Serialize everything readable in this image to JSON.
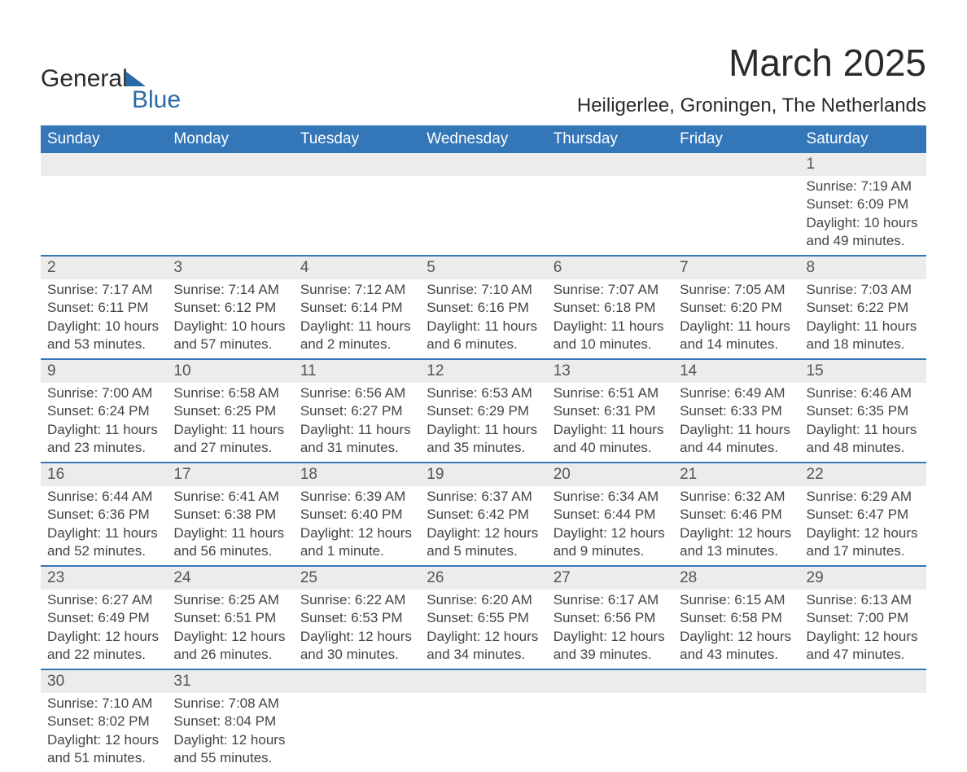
{
  "logo": {
    "part1": "General",
    "part2": "Blue"
  },
  "title": "March 2025",
  "location": "Heiligerlee, Groningen, The Netherlands",
  "day_headers": [
    "Sunday",
    "Monday",
    "Tuesday",
    "Wednesday",
    "Thursday",
    "Friday",
    "Saturday"
  ],
  "colors": {
    "header_bg": "#3477b9",
    "header_text": "#ffffff",
    "daynum_bg": "#ececec",
    "row_border": "#3477b9",
    "body_text": "#444444",
    "title_text": "#2a2a2a",
    "logo_blue": "#2b6aa8"
  },
  "label": {
    "sunrise": "Sunrise:",
    "sunset": "Sunset:",
    "daylight": "Daylight:"
  },
  "weeks": [
    [
      null,
      null,
      null,
      null,
      null,
      null,
      {
        "n": "1",
        "sunrise": "7:19 AM",
        "sunset": "6:09 PM",
        "daylight1": "10 hours",
        "daylight2": "and 49 minutes."
      }
    ],
    [
      {
        "n": "2",
        "sunrise": "7:17 AM",
        "sunset": "6:11 PM",
        "daylight1": "10 hours",
        "daylight2": "and 53 minutes."
      },
      {
        "n": "3",
        "sunrise": "7:14 AM",
        "sunset": "6:12 PM",
        "daylight1": "10 hours",
        "daylight2": "and 57 minutes."
      },
      {
        "n": "4",
        "sunrise": "7:12 AM",
        "sunset": "6:14 PM",
        "daylight1": "11 hours",
        "daylight2": "and 2 minutes."
      },
      {
        "n": "5",
        "sunrise": "7:10 AM",
        "sunset": "6:16 PM",
        "daylight1": "11 hours",
        "daylight2": "and 6 minutes."
      },
      {
        "n": "6",
        "sunrise": "7:07 AM",
        "sunset": "6:18 PM",
        "daylight1": "11 hours",
        "daylight2": "and 10 minutes."
      },
      {
        "n": "7",
        "sunrise": "7:05 AM",
        "sunset": "6:20 PM",
        "daylight1": "11 hours",
        "daylight2": "and 14 minutes."
      },
      {
        "n": "8",
        "sunrise": "7:03 AM",
        "sunset": "6:22 PM",
        "daylight1": "11 hours",
        "daylight2": "and 18 minutes."
      }
    ],
    [
      {
        "n": "9",
        "sunrise": "7:00 AM",
        "sunset": "6:24 PM",
        "daylight1": "11 hours",
        "daylight2": "and 23 minutes."
      },
      {
        "n": "10",
        "sunrise": "6:58 AM",
        "sunset": "6:25 PM",
        "daylight1": "11 hours",
        "daylight2": "and 27 minutes."
      },
      {
        "n": "11",
        "sunrise": "6:56 AM",
        "sunset": "6:27 PM",
        "daylight1": "11 hours",
        "daylight2": "and 31 minutes."
      },
      {
        "n": "12",
        "sunrise": "6:53 AM",
        "sunset": "6:29 PM",
        "daylight1": "11 hours",
        "daylight2": "and 35 minutes."
      },
      {
        "n": "13",
        "sunrise": "6:51 AM",
        "sunset": "6:31 PM",
        "daylight1": "11 hours",
        "daylight2": "and 40 minutes."
      },
      {
        "n": "14",
        "sunrise": "6:49 AM",
        "sunset": "6:33 PM",
        "daylight1": "11 hours",
        "daylight2": "and 44 minutes."
      },
      {
        "n": "15",
        "sunrise": "6:46 AM",
        "sunset": "6:35 PM",
        "daylight1": "11 hours",
        "daylight2": "and 48 minutes."
      }
    ],
    [
      {
        "n": "16",
        "sunrise": "6:44 AM",
        "sunset": "6:36 PM",
        "daylight1": "11 hours",
        "daylight2": "and 52 minutes."
      },
      {
        "n": "17",
        "sunrise": "6:41 AM",
        "sunset": "6:38 PM",
        "daylight1": "11 hours",
        "daylight2": "and 56 minutes."
      },
      {
        "n": "18",
        "sunrise": "6:39 AM",
        "sunset": "6:40 PM",
        "daylight1": "12 hours",
        "daylight2": "and 1 minute."
      },
      {
        "n": "19",
        "sunrise": "6:37 AM",
        "sunset": "6:42 PM",
        "daylight1": "12 hours",
        "daylight2": "and 5 minutes."
      },
      {
        "n": "20",
        "sunrise": "6:34 AM",
        "sunset": "6:44 PM",
        "daylight1": "12 hours",
        "daylight2": "and 9 minutes."
      },
      {
        "n": "21",
        "sunrise": "6:32 AM",
        "sunset": "6:46 PM",
        "daylight1": "12 hours",
        "daylight2": "and 13 minutes."
      },
      {
        "n": "22",
        "sunrise": "6:29 AM",
        "sunset": "6:47 PM",
        "daylight1": "12 hours",
        "daylight2": "and 17 minutes."
      }
    ],
    [
      {
        "n": "23",
        "sunrise": "6:27 AM",
        "sunset": "6:49 PM",
        "daylight1": "12 hours",
        "daylight2": "and 22 minutes."
      },
      {
        "n": "24",
        "sunrise": "6:25 AM",
        "sunset": "6:51 PM",
        "daylight1": "12 hours",
        "daylight2": "and 26 minutes."
      },
      {
        "n": "25",
        "sunrise": "6:22 AM",
        "sunset": "6:53 PM",
        "daylight1": "12 hours",
        "daylight2": "and 30 minutes."
      },
      {
        "n": "26",
        "sunrise": "6:20 AM",
        "sunset": "6:55 PM",
        "daylight1": "12 hours",
        "daylight2": "and 34 minutes."
      },
      {
        "n": "27",
        "sunrise": "6:17 AM",
        "sunset": "6:56 PM",
        "daylight1": "12 hours",
        "daylight2": "and 39 minutes."
      },
      {
        "n": "28",
        "sunrise": "6:15 AM",
        "sunset": "6:58 PM",
        "daylight1": "12 hours",
        "daylight2": "and 43 minutes."
      },
      {
        "n": "29",
        "sunrise": "6:13 AM",
        "sunset": "7:00 PM",
        "daylight1": "12 hours",
        "daylight2": "and 47 minutes."
      }
    ],
    [
      {
        "n": "30",
        "sunrise": "7:10 AM",
        "sunset": "8:02 PM",
        "daylight1": "12 hours",
        "daylight2": "and 51 minutes."
      },
      {
        "n": "31",
        "sunrise": "7:08 AM",
        "sunset": "8:04 PM",
        "daylight1": "12 hours",
        "daylight2": "and 55 minutes."
      },
      null,
      null,
      null,
      null,
      null
    ]
  ]
}
